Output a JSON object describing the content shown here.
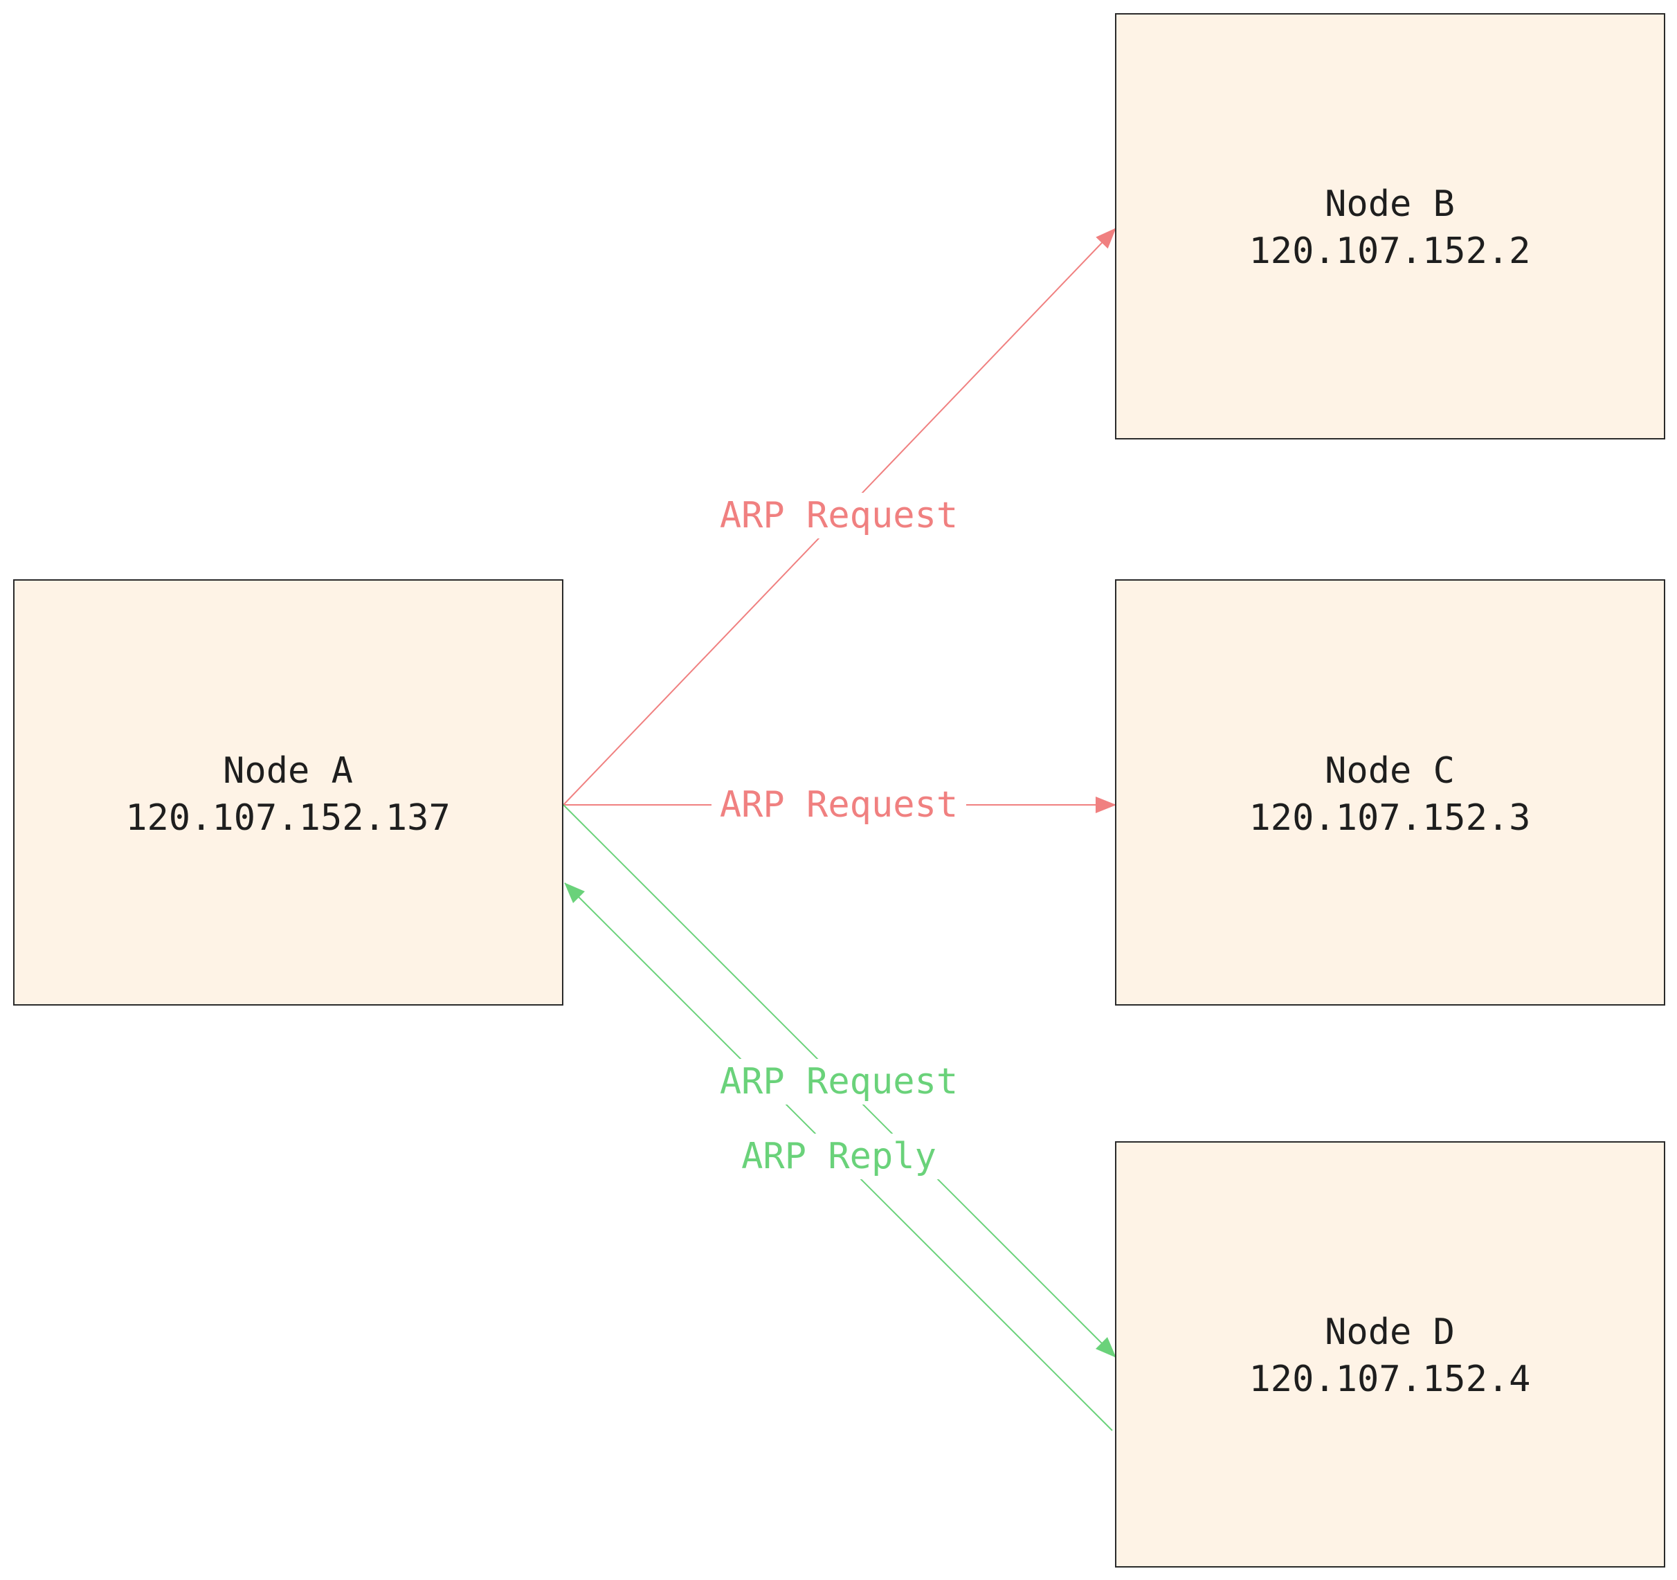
{
  "colors": {
    "node_fill": "#fef3e6",
    "node_stroke": "#2a2a2a",
    "request_red": "#f08080",
    "green": "#6ad27a",
    "text": "#1e1e1e",
    "background": "#ffffff"
  },
  "nodes": {
    "a": {
      "name": "Node A",
      "ip": "120.107.152.137"
    },
    "b": {
      "name": "Node B",
      "ip": "120.107.152.2"
    },
    "c": {
      "name": "Node C",
      "ip": "120.107.152.3"
    },
    "d": {
      "name": "Node D",
      "ip": "120.107.152.4"
    }
  },
  "edges": {
    "a_to_b": {
      "label": "ARP Request"
    },
    "a_to_c": {
      "label": "ARP Request"
    },
    "a_to_d": {
      "label": "ARP Request"
    },
    "d_to_a": {
      "label": "ARP Reply"
    }
  }
}
